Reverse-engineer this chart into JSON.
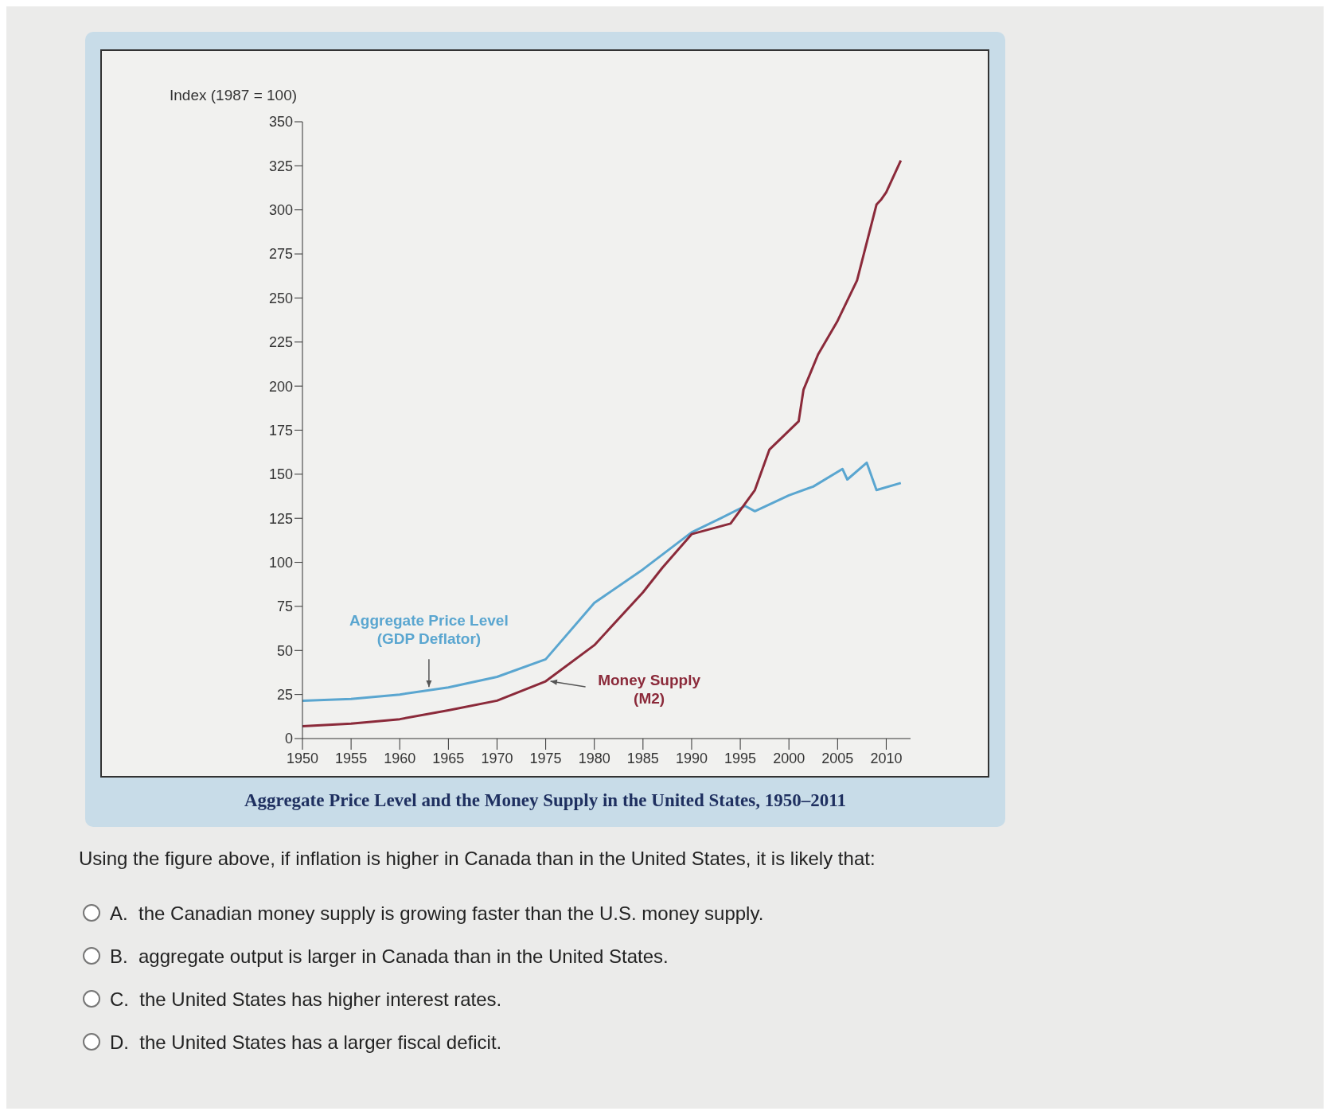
{
  "chart_data": {
    "type": "line",
    "title": "Aggregate Price Level and the Money Supply in the United States, 1950–2011",
    "ylabel": "Index (1987 = 100)",
    "series": [
      {
        "color": "#5aa6d0",
        "x": [
          1950,
          1955,
          1960,
          1965,
          1970,
          1975,
          1980,
          1985,
          1990,
          1993,
          1995.5,
          1996.5,
          2000,
          2002.5,
          2005.5,
          2006,
          2008,
          2009,
          2011.5
        ],
        "values": [
          21.5,
          22.5,
          25,
          29,
          35,
          45,
          77,
          96,
          117,
          125,
          132,
          129,
          138,
          143,
          153,
          147,
          156.5,
          141,
          145
        ]
      },
      {
        "color": "#8b2a3a",
        "x": [
          1950,
          1955,
          1960,
          1965,
          1970,
          1975,
          1980,
          1985,
          1987,
          1990,
          1994,
          1996.5,
          1998,
          2001,
          2001.5,
          2003,
          2005,
          2007,
          2009,
          2009.5,
          2010,
          2011.5
        ],
        "values": [
          7,
          8.5,
          11,
          16,
          21.5,
          32.5,
          53,
          83,
          97,
          116,
          122,
          141,
          164,
          180,
          198,
          218,
          237,
          260,
          303,
          306,
          310,
          328
        ]
      }
    ],
    "xlim": [
      1950,
      2012.5
    ],
    "xticks": [
      1950,
      1955,
      1960,
      1965,
      1970,
      1975,
      1980,
      1985,
      1990,
      1995,
      2000,
      2005,
      2010
    ],
    "ylim": [
      0,
      350
    ],
    "yticks": [
      0,
      25,
      50,
      75,
      100,
      125,
      150,
      175,
      200,
      225,
      250,
      275,
      300,
      325,
      350
    ],
    "grid": false,
    "legend": false,
    "marker": "none",
    "line_style": "solid",
    "annotations": [
      {
        "text": "Aggregate Price Level\n(GDP Deflator)",
        "x": 1963,
        "y": 27
      },
      {
        "text": "Money Supply\n(M2)",
        "x": 1975,
        "y": 33
      },
      "Using the figure above, if inflation is higher in Canada than in the United States, it is likely that:",
      "A.  the Canadian money supply is growing faster than the U.S. money supply.",
      "B.  aggregate output is larger in Canada than in the United States.",
      "C.  the United States has higher interest rates.",
      "D.  the United States has a larger fiscal deficit."
    ]
  }
}
